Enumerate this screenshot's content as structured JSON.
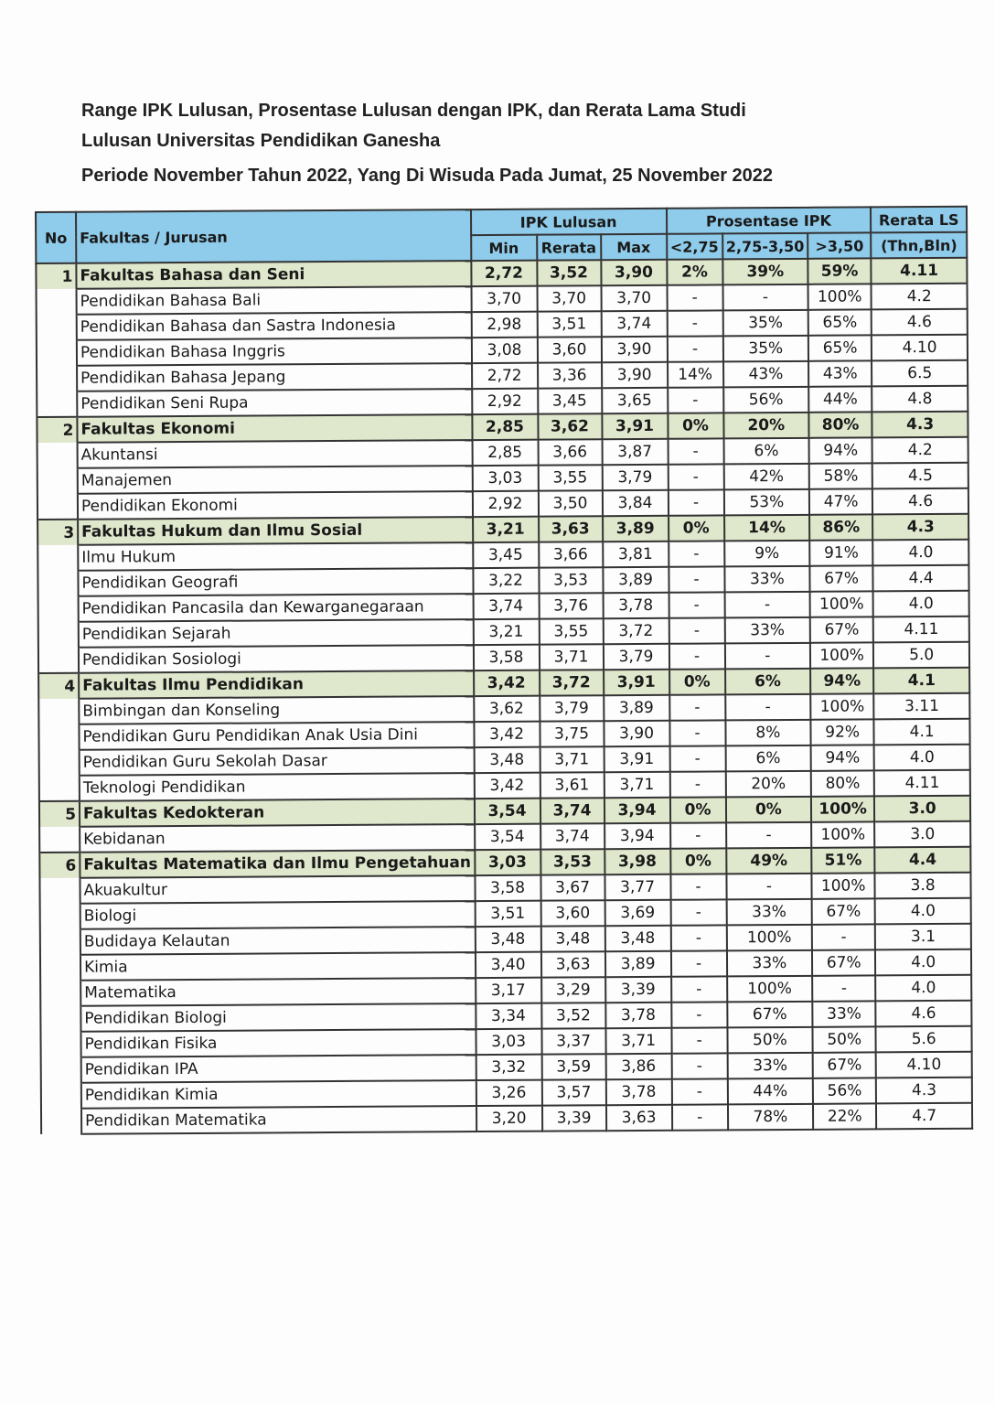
{
  "title": {
    "line1": "Range IPK Lulusan, Prosentase Lulusan dengan IPK, dan Rerata Lama Studi",
    "line2": "Lulusan Universitas Pendidikan Ganesha",
    "line3": "Periode November Tahun 2022, Yang Di Wisuda Pada Jumat, 25 November 2022"
  },
  "header": {
    "no": "No",
    "name": "Fakultas / Jurusan",
    "ipk": "IPK Lulusan",
    "pros": "Prosentase IPK",
    "ls": "Rerata LS",
    "ls_unit": "(Thn,Bln)",
    "min": "Min",
    "rerata": "Rerata",
    "max": "Max",
    "p1": "<2,75",
    "p2": "2,75-3,50",
    "p3": ">3,50"
  },
  "rows": [
    {
      "no": "1",
      "fac": true,
      "name": "Fakultas Bahasa dan Seni",
      "v": [
        "2,72",
        "3,52",
        "3,90",
        "2%",
        "39%",
        "59%",
        "4.11"
      ]
    },
    {
      "name": "Pendidikan Bahasa Bali",
      "v": [
        "3,70",
        "3,70",
        "3,70",
        "-",
        "-",
        "100%",
        "4.2"
      ]
    },
    {
      "name": "Pendidikan Bahasa dan Sastra Indonesia",
      "v": [
        "2,98",
        "3,51",
        "3,74",
        "-",
        "35%",
        "65%",
        "4.6"
      ]
    },
    {
      "name": "Pendidikan Bahasa Inggris",
      "v": [
        "3,08",
        "3,60",
        "3,90",
        "-",
        "35%",
        "65%",
        "4.10"
      ]
    },
    {
      "name": "Pendidikan Bahasa Jepang",
      "v": [
        "2,72",
        "3,36",
        "3,90",
        "14%",
        "43%",
        "43%",
        "6.5"
      ]
    },
    {
      "name": "Pendidikan Seni Rupa",
      "v": [
        "2,92",
        "3,45",
        "3,65",
        "-",
        "56%",
        "44%",
        "4.8"
      ]
    },
    {
      "no": "2",
      "fac": true,
      "name": "Fakultas Ekonomi",
      "v": [
        "2,85",
        "3,62",
        "3,91",
        "0%",
        "20%",
        "80%",
        "4.3"
      ]
    },
    {
      "name": "Akuntansi",
      "v": [
        "2,85",
        "3,66",
        "3,87",
        "-",
        "6%",
        "94%",
        "4.2"
      ]
    },
    {
      "name": "Manajemen",
      "v": [
        "3,03",
        "3,55",
        "3,79",
        "-",
        "42%",
        "58%",
        "4.5"
      ]
    },
    {
      "name": "Pendidikan Ekonomi",
      "v": [
        "2,92",
        "3,50",
        "3,84",
        "-",
        "53%",
        "47%",
        "4.6"
      ]
    },
    {
      "no": "3",
      "fac": true,
      "name": "Fakultas Hukum dan Ilmu Sosial",
      "v": [
        "3,21",
        "3,63",
        "3,89",
        "0%",
        "14%",
        "86%",
        "4.3"
      ]
    },
    {
      "name": "Ilmu Hukum",
      "v": [
        "3,45",
        "3,66",
        "3,81",
        "-",
        "9%",
        "91%",
        "4.0"
      ]
    },
    {
      "name": "Pendidikan Geografi",
      "v": [
        "3,22",
        "3,53",
        "3,89",
        "-",
        "33%",
        "67%",
        "4.4"
      ]
    },
    {
      "name": "Pendidikan Pancasila dan Kewarganegaraan",
      "v": [
        "3,74",
        "3,76",
        "3,78",
        "-",
        "-",
        "100%",
        "4.0"
      ]
    },
    {
      "name": "Pendidikan Sejarah",
      "v": [
        "3,21",
        "3,55",
        "3,72",
        "-",
        "33%",
        "67%",
        "4.11"
      ]
    },
    {
      "name": "Pendidikan Sosiologi",
      "v": [
        "3,58",
        "3,71",
        "3,79",
        "-",
        "-",
        "100%",
        "5.0"
      ]
    },
    {
      "no": "4",
      "fac": true,
      "name": "Fakultas Ilmu Pendidikan",
      "v": [
        "3,42",
        "3,72",
        "3,91",
        "0%",
        "6%",
        "94%",
        "4.1"
      ]
    },
    {
      "name": "Bimbingan dan Konseling",
      "v": [
        "3,62",
        "3,79",
        "3,89",
        "-",
        "-",
        "100%",
        "3.11"
      ]
    },
    {
      "name": "Pendidikan Guru Pendidikan Anak Usia Dini",
      "v": [
        "3,42",
        "3,75",
        "3,90",
        "-",
        "8%",
        "92%",
        "4.1"
      ]
    },
    {
      "name": "Pendidikan Guru Sekolah Dasar",
      "v": [
        "3,48",
        "3,71",
        "3,91",
        "-",
        "6%",
        "94%",
        "4.0"
      ]
    },
    {
      "name": "Teknologi Pendidikan",
      "v": [
        "3,42",
        "3,61",
        "3,71",
        "-",
        "20%",
        "80%",
        "4.11"
      ]
    },
    {
      "no": "5",
      "fac": true,
      "name": "Fakultas Kedokteran",
      "v": [
        "3,54",
        "3,74",
        "3,94",
        "0%",
        "0%",
        "100%",
        "3.0"
      ]
    },
    {
      "name": "Kebidanan",
      "v": [
        "3,54",
        "3,74",
        "3,94",
        "-",
        "-",
        "100%",
        "3.0"
      ]
    },
    {
      "no": "6",
      "fac": true,
      "name": "Fakultas Matematika dan Ilmu Pengetahuan",
      "v": [
        "3,03",
        "3,53",
        "3,98",
        "0%",
        "49%",
        "51%",
        "4.4"
      ]
    },
    {
      "name": "Akuakultur",
      "v": [
        "3,58",
        "3,67",
        "3,77",
        "-",
        "-",
        "100%",
        "3.8"
      ]
    },
    {
      "name": "Biologi",
      "v": [
        "3,51",
        "3,60",
        "3,69",
        "-",
        "33%",
        "67%",
        "4.0"
      ]
    },
    {
      "name": "Budidaya Kelautan",
      "v": [
        "3,48",
        "3,48",
        "3,48",
        "-",
        "100%",
        "-",
        "3.1"
      ]
    },
    {
      "name": "Kimia",
      "v": [
        "3,40",
        "3,63",
        "3,89",
        "-",
        "33%",
        "67%",
        "4.0"
      ]
    },
    {
      "name": "Matematika",
      "v": [
        "3,17",
        "3,29",
        "3,39",
        "-",
        "100%",
        "-",
        "4.0"
      ]
    },
    {
      "name": "Pendidikan Biologi",
      "v": [
        "3,34",
        "3,52",
        "3,78",
        "-",
        "67%",
        "33%",
        "4.6"
      ]
    },
    {
      "name": "Pendidikan Fisika",
      "v": [
        "3,03",
        "3,37",
        "3,71",
        "-",
        "50%",
        "50%",
        "5.6"
      ]
    },
    {
      "name": "Pendidikan IPA",
      "v": [
        "3,32",
        "3,59",
        "3,86",
        "-",
        "33%",
        "67%",
        "4.10"
      ]
    },
    {
      "name": "Pendidikan Kimia",
      "v": [
        "3,26",
        "3,57",
        "3,78",
        "-",
        "44%",
        "56%",
        "4.3"
      ]
    },
    {
      "name": "Pendidikan Matematika",
      "v": [
        "3,20",
        "3,39",
        "3,63",
        "-",
        "78%",
        "22%",
        "4.7"
      ]
    }
  ]
}
